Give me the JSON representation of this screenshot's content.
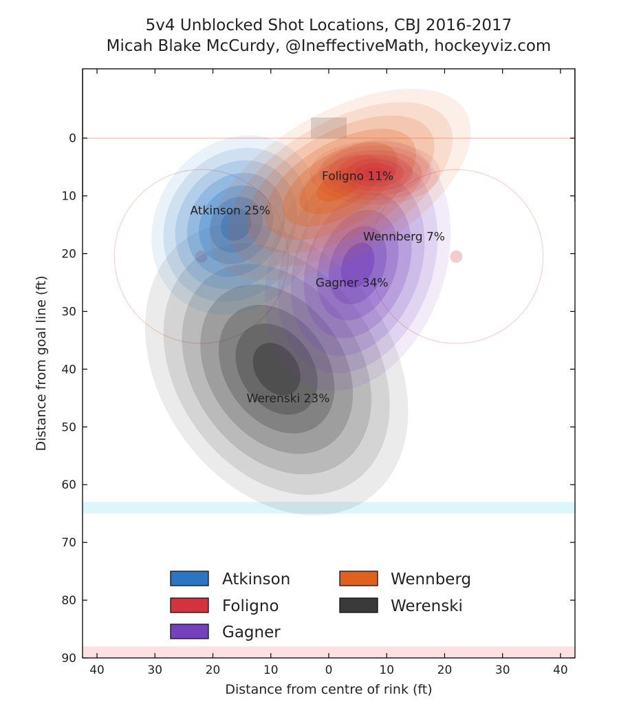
{
  "chart_data": {
    "type": "heatmap",
    "title": "5v4 Unblocked Shot Locations, CBJ 2016-2017",
    "subtitle": "Micah Blake McCurdy, @IneffectiveMath, hockeyviz.com",
    "xlabel": "Distance from centre of rink (ft)",
    "ylabel": "Distance from goal line (ft)",
    "xlim": [
      42.5,
      -42.5
    ],
    "ylim": [
      -12,
      90
    ],
    "x_ticks": [
      40,
      30,
      20,
      10,
      0,
      10,
      20,
      30,
      40
    ],
    "y_ticks": [
      0,
      10,
      20,
      30,
      40,
      50,
      60,
      70,
      80,
      90
    ],
    "grid": false,
    "legend_position": "lower-center",
    "series": [
      {
        "name": "Atkinson",
        "color": "#2a76c5",
        "label": "Atkinson 25%",
        "share_pct": 25,
        "center": [
          16,
          15
        ],
        "sigma": [
          5.5,
          6.5
        ],
        "rotation_deg": 35,
        "label_pos": [
          17,
          12.5
        ]
      },
      {
        "name": "Foligno",
        "color": "#d2343d",
        "label": "Foligno 11%",
        "share_pct": 11,
        "center": [
          -8,
          6
        ],
        "sigma": [
          4.5,
          2.2
        ],
        "rotation_deg": 0,
        "label_pos": [
          -5,
          6.5
        ]
      },
      {
        "name": "Gagner",
        "color": "#7341bb",
        "label": "Gagner 34%",
        "share_pct": 34,
        "center": [
          -5,
          22
        ],
        "sigma": [
          6,
          9
        ],
        "rotation_deg": 20,
        "label_pos": [
          -4,
          25
        ]
      },
      {
        "name": "Wennberg",
        "color": "#e0601e",
        "label": "Wennberg 7%",
        "share_pct": 7,
        "center": [
          -2,
          8
        ],
        "sigma": [
          10,
          5
        ],
        "rotation_deg": -30,
        "label_pos": [
          -13,
          17
        ]
      },
      {
        "name": "Werenski",
        "color": "#3a3a3a",
        "label": "Werenski 23%",
        "share_pct": 23,
        "center": [
          9,
          40
        ],
        "sigma": [
          8,
          11
        ],
        "rotation_deg": -35,
        "label_pos": [
          7,
          45
        ]
      }
    ]
  }
}
